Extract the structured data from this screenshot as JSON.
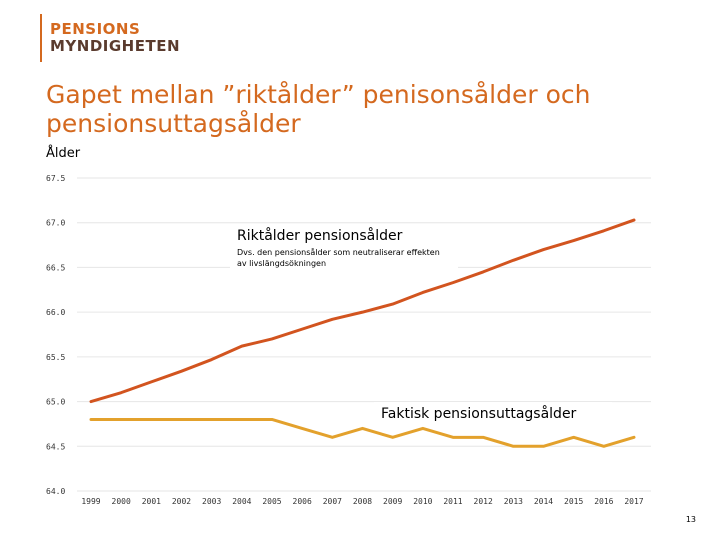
{
  "logo": {
    "line1": "PENSIONS",
    "line2": "MYNDIGHETEN"
  },
  "title": "Gapet mellan ”riktålder” penisonsålder och pensionsuttagsålder",
  "colors": {
    "brand": "#d4691f",
    "text": "#5a3b2e",
    "series1": "#d2541f",
    "series2": "#e3a12c",
    "grid": "#e6e6e6"
  },
  "chart_data": {
    "type": "line",
    "xlabel": "",
    "ylabel": "Ålder",
    "ylim": [
      64.0,
      67.5
    ],
    "yticks": [
      "67.5",
      "67.0",
      "66.5",
      "66.0",
      "65.5",
      "65.0",
      "64.5",
      "64.0"
    ],
    "ytick_values": [
      67.5,
      67.0,
      66.5,
      66.0,
      65.5,
      65.0,
      64.5,
      64.0
    ],
    "x": [
      "1999",
      "2000",
      "2001",
      "2002",
      "2003",
      "2004",
      "2005",
      "2006",
      "2007",
      "2008",
      "2009",
      "2010",
      "2011",
      "2012",
      "2013",
      "2014",
      "2015",
      "2016",
      "2017"
    ],
    "grid": true,
    "series": [
      {
        "name": "Riktålder pensionsålder",
        "values": [
          65.0,
          65.1,
          65.22,
          65.34,
          65.47,
          65.62,
          65.7,
          65.81,
          65.92,
          66.0,
          66.09,
          66.22,
          66.33,
          66.45,
          66.58,
          66.7,
          66.8,
          66.91,
          67.03
        ]
      },
      {
        "name": "Faktisk pensionsuttagsålder",
        "values": [
          64.8,
          64.8,
          64.8,
          64.8,
          64.8,
          64.8,
          64.8,
          64.7,
          64.6,
          64.7,
          64.6,
          64.7,
          64.6,
          64.6,
          64.5,
          64.5,
          64.6,
          64.5,
          64.6
        ]
      }
    ],
    "annotations": [
      {
        "label": "Riktålder pensionsålder",
        "sublabel": "Dvs. den pensionsålder som neutraliserar effekten av livslängdsökningen"
      },
      {
        "label": "Faktisk pensionsuttagsålder"
      }
    ]
  },
  "footer": {
    "page_number": "13"
  }
}
